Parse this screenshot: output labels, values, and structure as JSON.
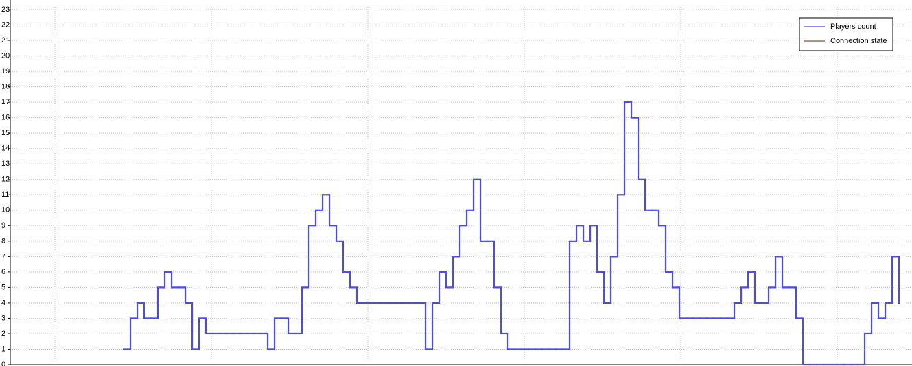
{
  "chart_data": {
    "type": "step",
    "ylim": [
      0,
      23
    ],
    "yticks": [
      0,
      1,
      2,
      3,
      4,
      5,
      6,
      7,
      8,
      9,
      10,
      11,
      12,
      13,
      14,
      15,
      16,
      17,
      18,
      19,
      20,
      21,
      22,
      23
    ],
    "grid": true,
    "legend": "upper right",
    "series": [
      {
        "name": "Players count",
        "color": "#4a4af0",
        "values": [
          null,
          null,
          null,
          null,
          null,
          null,
          null,
          null,
          null,
          null,
          null,
          null,
          null,
          null,
          null,
          null,
          1,
          3,
          4,
          3,
          3,
          5,
          6,
          5,
          5,
          4,
          1,
          3,
          2,
          2,
          2,
          2,
          2,
          2,
          2,
          2,
          2,
          1,
          3,
          3,
          2,
          2,
          5,
          9,
          10,
          11,
          9,
          8,
          6,
          5,
          4,
          4,
          4,
          4,
          4,
          4,
          4,
          4,
          4,
          4,
          1,
          4,
          6,
          5,
          7,
          9,
          10,
          12,
          8,
          8,
          5,
          2,
          1,
          1,
          1,
          1,
          1,
          1,
          1,
          1,
          1,
          8,
          9,
          8,
          9,
          6,
          4,
          7,
          11,
          17,
          16,
          12,
          10,
          10,
          9,
          6,
          5,
          3,
          3,
          3,
          3,
          3,
          3,
          3,
          3,
          4,
          5,
          6,
          4,
          4,
          5,
          7,
          5,
          5,
          3,
          0,
          0,
          0,
          0,
          0,
          0,
          0,
          0,
          0,
          2,
          4,
          3,
          4,
          7,
          4
        ]
      },
      {
        "name": "Connection state",
        "color": "#c0392b",
        "values": [
          null,
          null,
          null,
          null,
          null,
          null,
          null,
          null,
          null,
          null,
          null,
          null,
          null,
          null,
          null,
          null,
          null,
          null,
          null,
          null,
          null,
          null,
          null,
          null,
          null,
          null,
          null,
          null,
          null,
          null,
          null,
          null,
          null,
          null,
          null,
          null,
          null,
          null,
          null,
          null,
          null,
          null,
          null,
          null,
          null,
          null,
          null,
          null,
          null,
          null,
          null,
          null,
          null,
          null,
          null,
          null,
          null,
          null,
          null,
          null,
          null,
          null,
          null,
          null,
          null,
          null,
          null,
          null,
          null,
          null,
          null,
          null,
          null,
          null,
          null,
          null,
          null,
          null,
          null,
          null,
          null,
          null,
          null,
          null,
          null,
          null,
          null,
          null,
          null,
          null,
          null,
          null,
          null,
          null,
          null,
          null,
          null,
          null,
          null,
          null,
          null,
          null,
          null,
          null,
          null,
          null,
          null,
          null,
          null,
          null,
          null,
          null,
          null,
          null,
          null,
          null,
          null,
          null,
          null,
          null,
          null,
          null,
          null,
          null,
          null,
          null,
          null,
          null,
          null,
          null
        ]
      }
    ]
  }
}
